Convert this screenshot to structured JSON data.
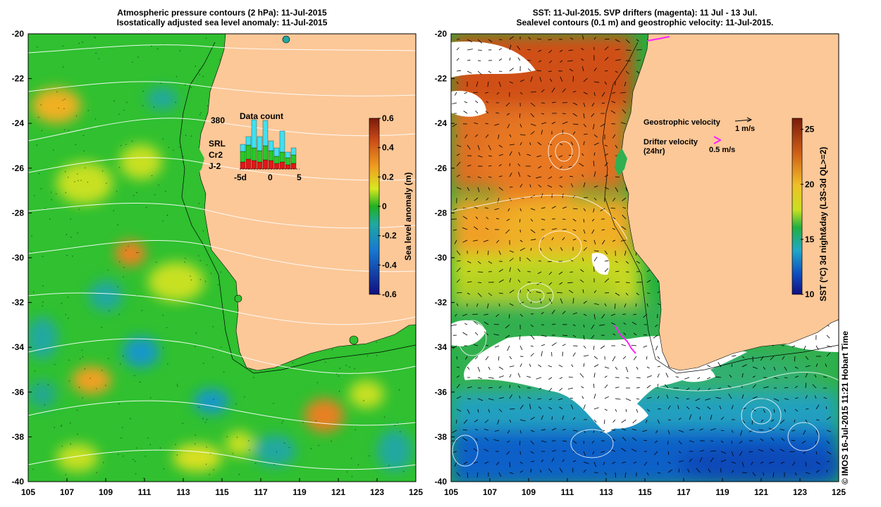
{
  "left_panel": {
    "title_line1": "Atmospheric pressure contours (2 hPa): 11-Jul-2015",
    "title_line2": "Isostatically adjusted sea level anomaly: 11-Jul-2015",
    "lat_labels": [
      "-20",
      "-22",
      "-24",
      "-26",
      "-28",
      "-30",
      "-32",
      "-34",
      "-36",
      "-38",
      "-40"
    ],
    "lon_labels": [
      "105",
      "107",
      "109",
      "111",
      "113",
      "115",
      "117",
      "119",
      "121",
      "123",
      "125"
    ],
    "colorbar": {
      "label": "Sea level anomaly (m)",
      "ticks": [
        "0.6",
        "0.4",
        "0.2",
        "0",
        "-0.2",
        "-0.4",
        "-0.6"
      ],
      "range": [
        -0.6,
        0.6
      ]
    },
    "data_count": {
      "title": "Data count",
      "ymax_label": "380",
      "x_labels": [
        "-5d",
        "0",
        "5"
      ],
      "legend": [
        {
          "name": "SRL",
          "color": "#40e0f0"
        },
        {
          "name": "Cr2",
          "color": "#28c828"
        },
        {
          "name": "J-2",
          "color": "#e01818"
        }
      ]
    }
  },
  "right_panel": {
    "title_line1": "SST: 11-Jul-2015. SVP drifters (magenta): 11 Jul - 13 Jul.",
    "title_line2": "Sealevel contours (0.1 m) and geostrophic velocity: 11-Jul-2015.",
    "lat_labels": [
      "-20",
      "-22",
      "-24",
      "-26",
      "-28",
      "-30",
      "-32",
      "-34",
      "-36",
      "-38",
      "-40"
    ],
    "lon_labels": [
      "105",
      "107",
      "109",
      "111",
      "113",
      "115",
      "117",
      "119",
      "121",
      "123",
      "125"
    ],
    "legend": {
      "geo_label": "Geostrophic velocity",
      "geo_scale": "1 m/s",
      "drifter_label": "Drifter velocity",
      "drifter_sub": "(24hr)",
      "drifter_scale": "0.5 m/s"
    },
    "colorbar": {
      "label": "SST (°C) 3d night&day (L3S-3d QL>=2)",
      "ticks": [
        "25",
        "20",
        "15",
        "10"
      ],
      "range": [
        10,
        26
      ]
    }
  },
  "credit": "© IMOS 16-Jul-2015 11:21 Hobart Time",
  "colors": {
    "land": "#fcc898",
    "sla_positive": "#f0a020",
    "sla_zero": "#20b020",
    "sla_negative": "#1878d0",
    "sst_warm": "#d06018",
    "sst_cool": "#1050c0",
    "drifter": "#ff20ff"
  }
}
